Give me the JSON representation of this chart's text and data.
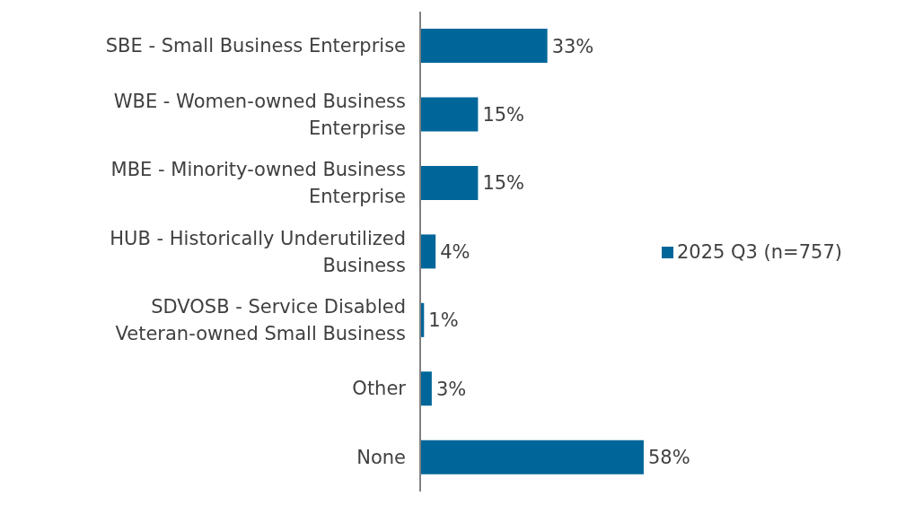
{
  "chart_data": {
    "type": "bar",
    "orientation": "horizontal",
    "categories": [
      "SBE - Small Business Enterprise",
      "WBE - Women-owned Business Enterprise",
      "MBE - Minority-owned Business Enterprise",
      "HUB - Historically Underutilized Business",
      "SDVOSB - Service Disabled Veteran-owned Small Business",
      "Other",
      "None"
    ],
    "series": [
      {
        "name": "2025 Q3 (n=757)",
        "color": "#00669a",
        "values": [
          33,
          15,
          15,
          4,
          1,
          3,
          58
        ],
        "value_labels": [
          "33%",
          "15%",
          "15%",
          "4%",
          "1%",
          "3%",
          "58%"
        ]
      }
    ],
    "legend": "right",
    "tick_labels": "y"
  }
}
